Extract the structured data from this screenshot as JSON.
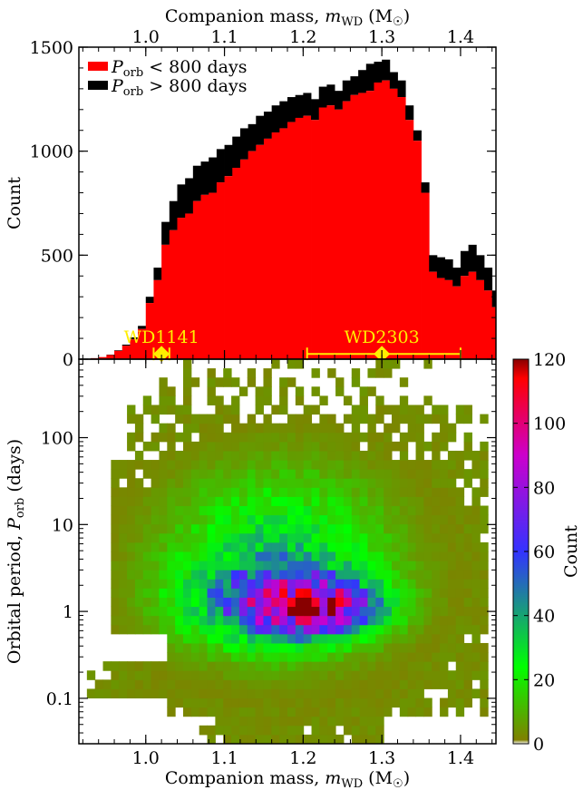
{
  "chart_data": [
    {
      "type": "bar",
      "panel": "top",
      "title": "",
      "top_xlabel": "Companion mass, m_WD (M☉)",
      "ylabel": "Count",
      "xlim": [
        0.915,
        1.445
      ],
      "ylim": [
        0,
        1500
      ],
      "xticks": [
        1.0,
        1.1,
        1.2,
        1.3,
        1.4
      ],
      "xtick_labels": [
        "1.0",
        "1.1",
        "1.2",
        "1.3",
        "1.4"
      ],
      "yticks": [
        0,
        500,
        1000,
        1500
      ],
      "ytick_labels": [
        "0",
        "500",
        "1000",
        "1500"
      ],
      "legend_placement": "top-left",
      "bin_width": 0.01,
      "bin_start": 0.93,
      "series": [
        {
          "name": "P_orb < 800 days",
          "label_main": "P",
          "label_sub": "orb",
          "label_rest": " < 800 days",
          "color": "#ff0000",
          "values": [
            5,
            10,
            20,
            40,
            65,
            95,
            145,
            270,
            380,
            550,
            620,
            680,
            700,
            760,
            790,
            800,
            850,
            880,
            920,
            960,
            1000,
            1030,
            1060,
            1090,
            1110,
            1140,
            1160,
            1170,
            1150,
            1210,
            1220,
            1200,
            1240,
            1270,
            1280,
            1290,
            1330,
            1340,
            1300,
            1260,
            1150,
            1050,
            800,
            420,
            390,
            380,
            350,
            400,
            420,
            380,
            330,
            250,
            170,
            120,
            75,
            30,
            10,
            5,
            5,
            5
          ]
        },
        {
          "name": "P_orb > 800 days",
          "label_main": "P",
          "label_sub": "orb",
          "label_rest": " > 800 days",
          "color": "#000000",
          "values": [
            0,
            0,
            2,
            3,
            5,
            10,
            15,
            30,
            60,
            110,
            140,
            160,
            170,
            170,
            160,
            170,
            160,
            150,
            150,
            150,
            130,
            140,
            130,
            130,
            130,
            120,
            110,
            110,
            100,
            100,
            100,
            90,
            100,
            90,
            110,
            130,
            100,
            100,
            80,
            80,
            70,
            50,
            50,
            80,
            100,
            100,
            90,
            120,
            130,
            120,
            110,
            80,
            60,
            40,
            30,
            10,
            5,
            0,
            0,
            0
          ]
        }
      ],
      "annotations": [
        {
          "label": "WD1141",
          "x": 1.02,
          "xerr": [
            1.01,
            1.03
          ],
          "y": 95,
          "color": "#ffee00"
        },
        {
          "label": "WD2303",
          "x": 1.3,
          "xerr": [
            1.205,
            1.4
          ],
          "y": 95,
          "color": "#ffee00"
        }
      ]
    },
    {
      "type": "heatmap",
      "panel": "bottom",
      "xlabel": "Companion mass, m_WD (M☉)",
      "ylabel": "Orbital period, P_orb (days)",
      "xlim": [
        0.915,
        1.445
      ],
      "ylim": [
        0.03,
        800
      ],
      "y_scale": "log",
      "xticks": [
        1.0,
        1.1,
        1.2,
        1.3,
        1.4
      ],
      "xtick_labels": [
        "1.0",
        "1.1",
        "1.2",
        "1.3",
        "1.4"
      ],
      "yticks": [
        0.1,
        1,
        10,
        100
      ],
      "ytick_labels": [
        "0.1",
        "1",
        "10",
        "100"
      ],
      "colorbar": {
        "label": "Count",
        "range": [
          0,
          120
        ],
        "ticks": [
          0,
          20,
          40,
          60,
          80,
          100,
          120
        ],
        "tick_labels": [
          "0",
          "20",
          "40",
          "60",
          "80",
          "100",
          "120"
        ],
        "colors": [
          "#ffffff",
          "#808000",
          "#00ff00",
          "#3333ff",
          "#cc00cc",
          "#ff0000",
          "#880000"
        ]
      }
    }
  ],
  "labels": {
    "top_xlabel_main": "Companion mass, ",
    "top_xlabel_var": "m",
    "top_xlabel_sub": "WD",
    "top_xlabel_unit": " (M",
    "top_xlabel_sun": "☉",
    "top_xlabel_close": ")",
    "bottom_xlabel_main": "Companion mass, ",
    "bottom_xlabel_var": "m",
    "bottom_xlabel_sub": "WD",
    "bottom_xlabel_unit": " (M",
    "bottom_xlabel_sun": "☉",
    "bottom_xlabel_close": ")",
    "top_ylabel": "Count",
    "bottom_ylabel_main": "Orbital period, ",
    "bottom_ylabel_var": "P",
    "bottom_ylabel_sub": "orb",
    "bottom_ylabel_close": " (days)",
    "colorbar_label": "Count"
  }
}
